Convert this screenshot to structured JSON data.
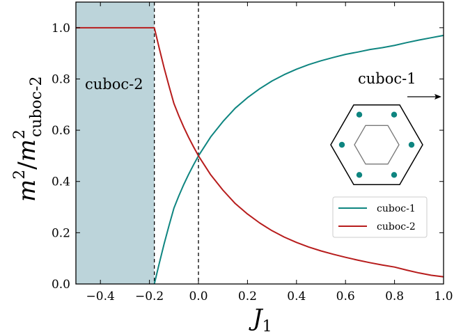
{
  "chart_data": {
    "type": "line",
    "xlabel": "J",
    "xlabel_subscript": "1",
    "ylabel_main": "m",
    "ylabel_sup": "2",
    "ylabel_slash": "/",
    "ylabel_sub": "cuboc-2",
    "xlim": [
      -0.5,
      1.0
    ],
    "ylim": [
      0.0,
      1.1
    ],
    "xticks": [
      "−0.4",
      "−0.2",
      "0.0",
      "0.2",
      "0.4",
      "0.6",
      "0.8",
      "1.0"
    ],
    "xtick_values": [
      -0.4,
      -0.2,
      0.0,
      0.2,
      0.4,
      0.6,
      0.8,
      1.0
    ],
    "yticks": [
      "0.0",
      "0.2",
      "0.4",
      "0.6",
      "0.8",
      "1.0"
    ],
    "ytick_values": [
      0.0,
      0.2,
      0.4,
      0.6,
      0.8,
      1.0
    ],
    "grid": false,
    "legend_position": "lower-right",
    "shaded_region": {
      "x_from": -0.5,
      "x_to": -0.18,
      "color": "#bcd4da",
      "label": "cuboc-2"
    },
    "vertical_lines": [
      -0.18,
      0.0
    ],
    "annotation_right": "cuboc-1",
    "series": [
      {
        "name": "cuboc-1",
        "color": "#0e8580",
        "x": [
          -0.18,
          -0.16,
          -0.14,
          -0.12,
          -0.1,
          -0.08,
          -0.06,
          -0.04,
          -0.02,
          0.0,
          0.05,
          0.1,
          0.15,
          0.2,
          0.25,
          0.3,
          0.35,
          0.4,
          0.45,
          0.5,
          0.55,
          0.6,
          0.65,
          0.7,
          0.75,
          0.8,
          0.85,
          0.9,
          0.95,
          1.0
        ],
        "y": [
          0.0,
          0.08,
          0.157,
          0.228,
          0.296,
          0.344,
          0.388,
          0.428,
          0.465,
          0.5,
          0.574,
          0.634,
          0.686,
          0.727,
          0.762,
          0.792,
          0.817,
          0.838,
          0.856,
          0.871,
          0.884,
          0.896,
          0.905,
          0.915,
          0.922,
          0.931,
          0.942,
          0.952,
          0.961,
          0.97
        ]
      },
      {
        "name": "cuboc-2",
        "color": "#b71c1c",
        "x": [
          -0.5,
          -0.18,
          -0.16,
          -0.14,
          -0.12,
          -0.1,
          -0.08,
          -0.06,
          -0.04,
          -0.02,
          0.0,
          0.05,
          0.1,
          0.15,
          0.2,
          0.25,
          0.3,
          0.35,
          0.4,
          0.45,
          0.5,
          0.55,
          0.6,
          0.65,
          0.7,
          0.75,
          0.8,
          0.85,
          0.9,
          0.95,
          1.0
        ],
        "y": [
          1.0,
          1.0,
          0.92,
          0.843,
          0.772,
          0.704,
          0.656,
          0.612,
          0.572,
          0.535,
          0.5,
          0.426,
          0.366,
          0.314,
          0.273,
          0.238,
          0.208,
          0.183,
          0.162,
          0.144,
          0.129,
          0.116,
          0.104,
          0.093,
          0.083,
          0.074,
          0.066,
          0.054,
          0.043,
          0.034,
          0.028
        ]
      }
    ]
  },
  "inset": {
    "hex_color": "#000000",
    "inner_hex_color": "#777777",
    "dot_color": "#0e8580",
    "dot_count": 6
  }
}
